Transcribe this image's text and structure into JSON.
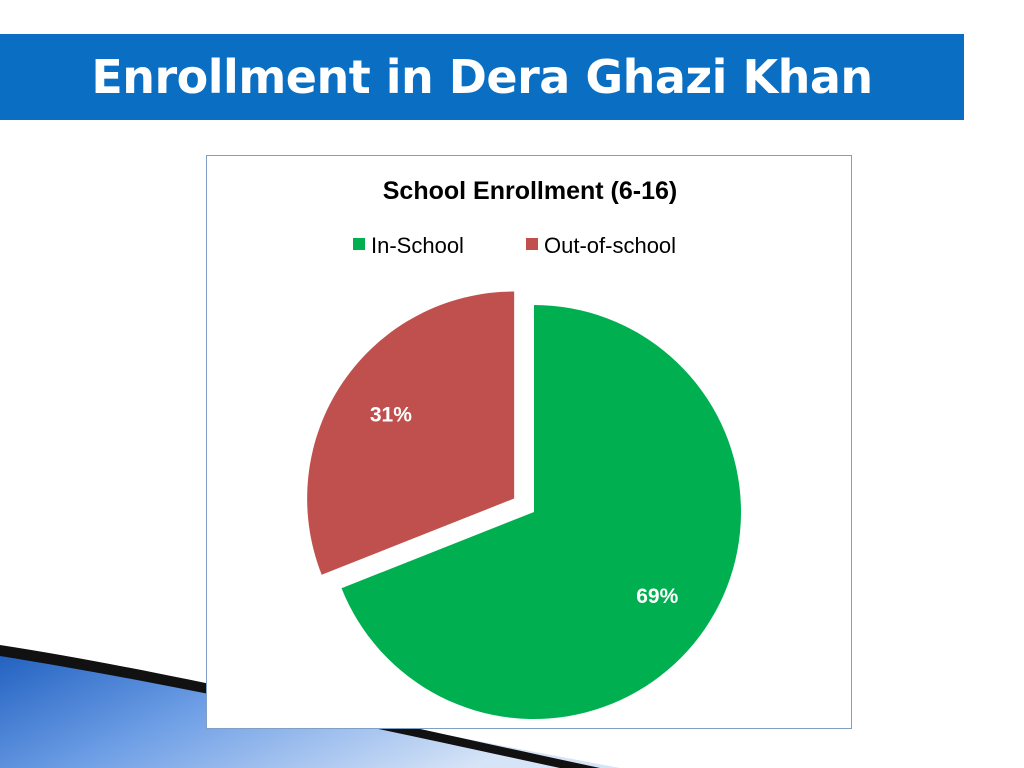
{
  "slide": {
    "title": "Enrollment in Dera Ghazi Khan"
  },
  "colors": {
    "title_bar": "#0a6fc2",
    "in_school": "#00b050",
    "out_of_school": "#c0504d",
    "frame_border": "#7f9fc4"
  },
  "chart_data": {
    "type": "pie",
    "title": "School Enrollment (6-16)",
    "legend_position": "top",
    "categories": [
      "In-School",
      "Out-of-school"
    ],
    "values": [
      69,
      31
    ],
    "labels": [
      "69%",
      "31%"
    ],
    "colors": [
      "#00b050",
      "#c0504d"
    ],
    "exploded": "Out-of-school"
  }
}
